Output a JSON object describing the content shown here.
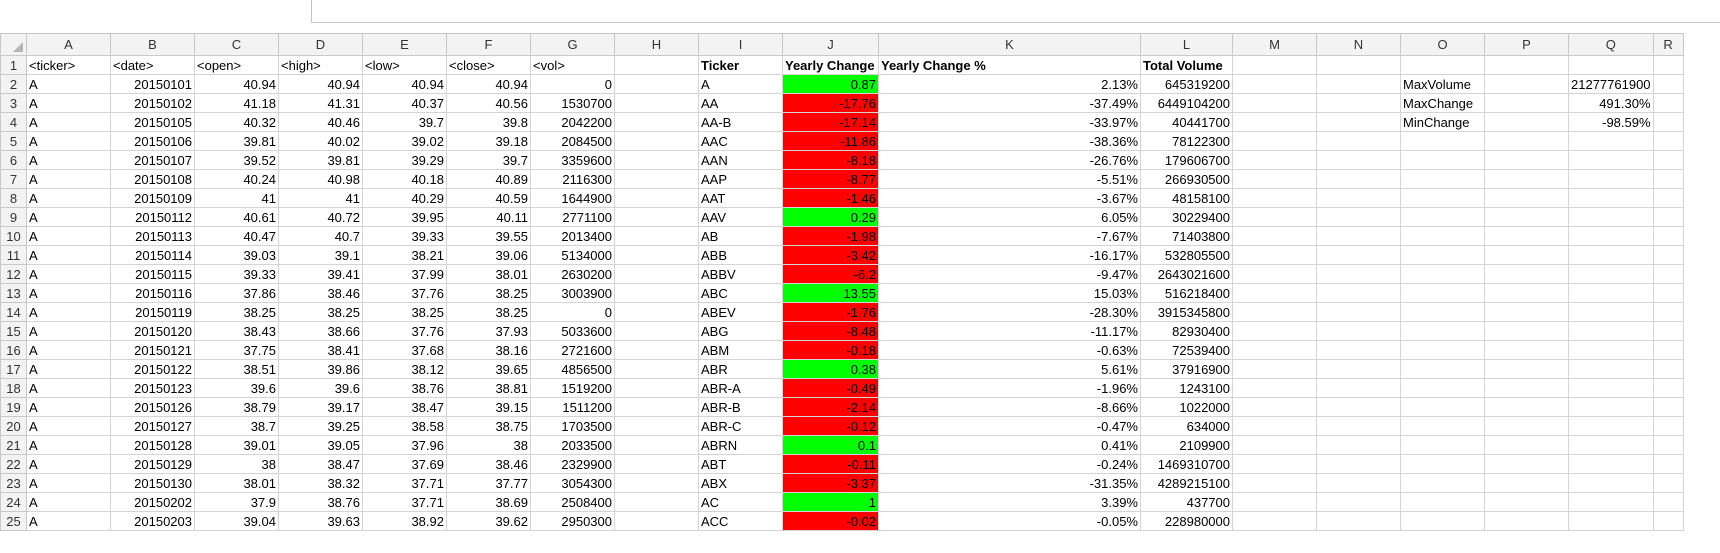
{
  "colors": {
    "positive": "#00ff00",
    "negative": "#ff0000"
  },
  "columns": [
    "A",
    "B",
    "C",
    "D",
    "E",
    "F",
    "G",
    "H",
    "I",
    "J",
    "K",
    "L",
    "M",
    "N",
    "O",
    "P",
    "Q",
    "R"
  ],
  "headers": {
    "A": "<ticker>",
    "B": "<date>",
    "C": "<open>",
    "D": "<high>",
    "E": "<low>",
    "F": "<close>",
    "G": "<vol>",
    "I": "Ticker",
    "J": "Yearly Change",
    "K": "Yearly Change %",
    "L": "Total Volume"
  },
  "raw_rows": [
    [
      "A",
      "20150101",
      "40.94",
      "40.94",
      "40.94",
      "40.94",
      "0"
    ],
    [
      "A",
      "20150102",
      "41.18",
      "41.31",
      "40.37",
      "40.56",
      "1530700"
    ],
    [
      "A",
      "20150105",
      "40.32",
      "40.46",
      "39.7",
      "39.8",
      "2042200"
    ],
    [
      "A",
      "20150106",
      "39.81",
      "40.02",
      "39.02",
      "39.18",
      "2084500"
    ],
    [
      "A",
      "20150107",
      "39.52",
      "39.81",
      "39.29",
      "39.7",
      "3359600"
    ],
    [
      "A",
      "20150108",
      "40.24",
      "40.98",
      "40.18",
      "40.89",
      "2116300"
    ],
    [
      "A",
      "20150109",
      "41",
      "41",
      "40.29",
      "40.59",
      "1644900"
    ],
    [
      "A",
      "20150112",
      "40.61",
      "40.72",
      "39.95",
      "40.11",
      "2771100"
    ],
    [
      "A",
      "20150113",
      "40.47",
      "40.7",
      "39.33",
      "39.55",
      "2013400"
    ],
    [
      "A",
      "20150114",
      "39.03",
      "39.1",
      "38.21",
      "39.06",
      "5134000"
    ],
    [
      "A",
      "20150115",
      "39.33",
      "39.41",
      "37.99",
      "38.01",
      "2630200"
    ],
    [
      "A",
      "20150116",
      "37.86",
      "38.46",
      "37.76",
      "38.25",
      "3003900"
    ],
    [
      "A",
      "20150119",
      "38.25",
      "38.25",
      "38.25",
      "38.25",
      "0"
    ],
    [
      "A",
      "20150120",
      "38.43",
      "38.66",
      "37.76",
      "37.93",
      "5033600"
    ],
    [
      "A",
      "20150121",
      "37.75",
      "38.41",
      "37.68",
      "38.16",
      "2721600"
    ],
    [
      "A",
      "20150122",
      "38.51",
      "39.86",
      "38.12",
      "39.65",
      "4856500"
    ],
    [
      "A",
      "20150123",
      "39.6",
      "39.6",
      "38.76",
      "38.81",
      "1519200"
    ],
    [
      "A",
      "20150126",
      "38.79",
      "39.17",
      "38.47",
      "39.15",
      "1511200"
    ],
    [
      "A",
      "20150127",
      "38.7",
      "39.25",
      "38.58",
      "38.75",
      "1703500"
    ],
    [
      "A",
      "20150128",
      "39.01",
      "39.05",
      "37.96",
      "38",
      "2033500"
    ],
    [
      "A",
      "20150129",
      "38",
      "38.47",
      "37.69",
      "38.46",
      "2329900"
    ],
    [
      "A",
      "20150130",
      "38.01",
      "38.32",
      "37.71",
      "37.77",
      "3054300"
    ],
    [
      "A",
      "20150202",
      "37.9",
      "38.76",
      "37.71",
      "38.69",
      "2508400"
    ],
    [
      "A",
      "20150203",
      "39.04",
      "39.63",
      "38.92",
      "39.62",
      "2950300"
    ]
  ],
  "summary_rows": [
    {
      "ticker": "A",
      "change": "0.87",
      "pct": "2.13%",
      "volume": "645319200"
    },
    {
      "ticker": "AA",
      "change": "-17.76",
      "pct": "-37.49%",
      "volume": "6449104200"
    },
    {
      "ticker": "AA-B",
      "change": "-17.14",
      "pct": "-33.97%",
      "volume": "40441700"
    },
    {
      "ticker": "AAC",
      "change": "-11.86",
      "pct": "-38.36%",
      "volume": "78122300"
    },
    {
      "ticker": "AAN",
      "change": "-8.18",
      "pct": "-26.76%",
      "volume": "179606700"
    },
    {
      "ticker": "AAP",
      "change": "-8.77",
      "pct": "-5.51%",
      "volume": "266930500"
    },
    {
      "ticker": "AAT",
      "change": "-1.46",
      "pct": "-3.67%",
      "volume": "48158100"
    },
    {
      "ticker": "AAV",
      "change": "0.29",
      "pct": "6.05%",
      "volume": "30229400"
    },
    {
      "ticker": "AB",
      "change": "-1.98",
      "pct": "-7.67%",
      "volume": "71403800"
    },
    {
      "ticker": "ABB",
      "change": "-3.42",
      "pct": "-16.17%",
      "volume": "532805500"
    },
    {
      "ticker": "ABBV",
      "change": "-6.2",
      "pct": "-9.47%",
      "volume": "2643021600"
    },
    {
      "ticker": "ABC",
      "change": "13.55",
      "pct": "15.03%",
      "volume": "516218400"
    },
    {
      "ticker": "ABEV",
      "change": "-1.76",
      "pct": "-28.30%",
      "volume": "3915345800"
    },
    {
      "ticker": "ABG",
      "change": "-8.48",
      "pct": "-11.17%",
      "volume": "82930400"
    },
    {
      "ticker": "ABM",
      "change": "-0.18",
      "pct": "-0.63%",
      "volume": "72539400"
    },
    {
      "ticker": "ABR",
      "change": "0.38",
      "pct": "5.61%",
      "volume": "37916900"
    },
    {
      "ticker": "ABR-A",
      "change": "-0.49",
      "pct": "-1.96%",
      "volume": "1243100"
    },
    {
      "ticker": "ABR-B",
      "change": "-2.14",
      "pct": "-8.66%",
      "volume": "1022000"
    },
    {
      "ticker": "ABR-C",
      "change": "-0.12",
      "pct": "-0.47%",
      "volume": "634000"
    },
    {
      "ticker": "ABRN",
      "change": "0.1",
      "pct": "0.41%",
      "volume": "2109900"
    },
    {
      "ticker": "ABT",
      "change": "-0.11",
      "pct": "-0.24%",
      "volume": "1469310700"
    },
    {
      "ticker": "ABX",
      "change": "-3.37",
      "pct": "-31.35%",
      "volume": "4289215100"
    },
    {
      "ticker": "AC",
      "change": "1",
      "pct": "3.39%",
      "volume": "437700"
    },
    {
      "ticker": "ACC",
      "change": "-0.02",
      "pct": "-0.05%",
      "volume": "228980000"
    }
  ],
  "stats": [
    {
      "label": "MaxVolume",
      "value": "21277761900"
    },
    {
      "label": "MaxChange",
      "value": "491.30%"
    },
    {
      "label": "MinChange",
      "value": "-98.59%"
    }
  ]
}
